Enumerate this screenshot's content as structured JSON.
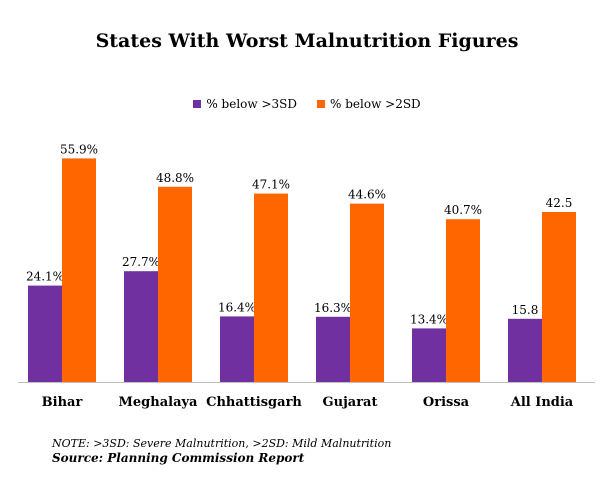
{
  "chart_data": {
    "type": "bar",
    "title": "States With Worst Malnutrition Figures",
    "categories": [
      "Bihar",
      "Meghalaya",
      "Chhattisgarh",
      "Gujarat",
      "Orissa",
      "All India"
    ],
    "series": [
      {
        "name": "% below >3SD",
        "color": "#7030a0",
        "values": [
          24.1,
          27.7,
          16.4,
          16.3,
          13.4,
          15.8
        ],
        "labels": [
          "24.1%",
          "27.7%",
          "16.4%",
          "16.3%",
          "13.4%",
          "15.8"
        ]
      },
      {
        "name": "% below >2SD",
        "color": "#ff6600",
        "values": [
          55.9,
          48.8,
          47.1,
          44.6,
          40.7,
          42.5
        ],
        "labels": [
          "55.9%",
          "48.8%",
          "47.1%",
          "44.6%",
          "40.7%",
          "42.5"
        ]
      }
    ],
    "ylim": [
      0,
      60
    ],
    "grid": false,
    "legend_position": "top-center",
    "xlabel": "",
    "ylabel": ""
  },
  "notes": {
    "note": "NOTE: >3SD: Severe Malnutrition, >2SD: Mild Malnutrition",
    "source": "Source: Planning Commission Report"
  }
}
